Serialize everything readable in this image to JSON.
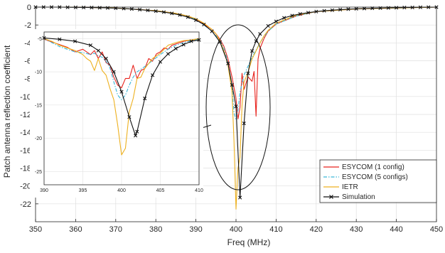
{
  "chart_data": {
    "type": "line",
    "title": "",
    "xlabel": "Freq (MHz)",
    "ylabel": "Patch antenna reflection coefficient",
    "xlim": [
      350,
      450
    ],
    "ylim": [
      -24,
      0
    ],
    "xticks": [
      350,
      360,
      370,
      380,
      390,
      400,
      410,
      420,
      430,
      440,
      450
    ],
    "yticks": [
      0,
      -2,
      -4,
      -6,
      -8,
      -10,
      -12,
      -14,
      -16,
      -18,
      -20,
      -22
    ],
    "grid": true,
    "legend_position": "lower-right",
    "series": [
      {
        "name": "ESYCOM (1 config)",
        "color": "#e8231d",
        "style": "solid",
        "x": [
          350,
          360,
          370,
          380,
          385,
          388,
          390,
          392,
          394,
          395,
          396,
          397,
          398,
          399,
          400,
          400.5,
          401,
          401.5,
          402,
          403,
          404,
          404.5,
          405,
          405.5,
          406,
          407,
          408,
          410,
          415,
          420,
          430,
          440,
          450
        ],
        "y": [
          0,
          0,
          -0.1,
          -0.4,
          -0.7,
          -1.0,
          -1.4,
          -1.9,
          -2.5,
          -3.0,
          -3.6,
          -4.4,
          -5.8,
          -7.8,
          -10.2,
          -12.5,
          -11.2,
          -7.4,
          -9.2,
          -7.8,
          -8.3,
          -7.2,
          -12.2,
          -5.8,
          -4.6,
          -3.5,
          -2.7,
          -1.9,
          -1.0,
          -0.5,
          -0.2,
          -0.1,
          0
        ]
      },
      {
        "name": "ESYCOM (5 configs)",
        "color": "#3ab6d8",
        "style": "dashdot",
        "x": [
          350,
          360,
          370,
          380,
          385,
          388,
          390,
          392,
          394,
          396,
          397,
          398,
          399,
          399.5,
          400,
          400.5,
          401,
          402,
          403,
          404,
          405,
          406,
          407,
          408,
          410,
          415,
          420,
          430,
          440,
          450
        ],
        "y": [
          0,
          0,
          -0.1,
          -0.4,
          -0.7,
          -1.0,
          -1.4,
          -2.0,
          -2.7,
          -3.7,
          -4.6,
          -6.2,
          -8.8,
          -11.8,
          -12.6,
          -11.5,
          -9.5,
          -7.6,
          -6.6,
          -5.6,
          -4.8,
          -4.0,
          -3.3,
          -2.7,
          -1.9,
          -1.0,
          -0.5,
          -0.2,
          -0.1,
          0
        ]
      },
      {
        "name": "IETR",
        "color": "#edb120",
        "style": "solid",
        "x": [
          350,
          360,
          370,
          380,
          385,
          388,
          390,
          392,
          394,
          395,
          396,
          397,
          398,
          399,
          399.5,
          400,
          400.5,
          401,
          401.5,
          402,
          403,
          404,
          405,
          406,
          407,
          408,
          410,
          415,
          420,
          430,
          440,
          450
        ],
        "y": [
          0,
          0,
          -0.1,
          -0.4,
          -0.7,
          -1.0,
          -1.3,
          -1.8,
          -2.5,
          -3.0,
          -3.8,
          -4.9,
          -6.5,
          -9.5,
          -15.0,
          -22.6,
          -18.0,
          -16.8,
          -11.0,
          -8.4,
          -7.3,
          -5.8,
          -4.9,
          -4.0,
          -3.2,
          -2.6,
          -1.8,
          -0.9,
          -0.5,
          -0.2,
          -0.1,
          0
        ]
      },
      {
        "name": "Simulation",
        "color": "#111111",
        "style": "solid",
        "marker": "x",
        "x": [
          350,
          352,
          354,
          356,
          358,
          360,
          362,
          364,
          366,
          368,
          370,
          372,
          374,
          376,
          378,
          380,
          382,
          384,
          386,
          388,
          390,
          392,
          394,
          396,
          398,
          399,
          400,
          401,
          402,
          403,
          404,
          405,
          406,
          408,
          410,
          412,
          414,
          416,
          418,
          420,
          422,
          424,
          426,
          428,
          430,
          432,
          434,
          436,
          438,
          440,
          442,
          444,
          446,
          448,
          450
        ],
        "y": [
          0,
          0,
          0,
          0,
          -0.02,
          -0.03,
          -0.04,
          -0.05,
          -0.07,
          -0.09,
          -0.12,
          -0.16,
          -0.21,
          -0.28,
          -0.36,
          -0.45,
          -0.56,
          -0.7,
          -0.88,
          -1.12,
          -1.45,
          -1.95,
          -2.7,
          -3.9,
          -6.3,
          -8.7,
          -11.1,
          -21.3,
          -13.0,
          -7.4,
          -4.9,
          -3.8,
          -3.0,
          -2.1,
          -1.6,
          -1.2,
          -0.95,
          -0.76,
          -0.62,
          -0.5,
          -0.41,
          -0.34,
          -0.28,
          -0.23,
          -0.19,
          -0.16,
          -0.13,
          -0.11,
          -0.09,
          -0.07,
          -0.05,
          -0.04,
          -0.02,
          -0.01,
          0
        ]
      }
    ],
    "inset": {
      "xlim": [
        390,
        410
      ],
      "ylim": [
        -27,
        -4
      ],
      "xticks": [
        390,
        395,
        400,
        405,
        410
      ],
      "yticks": [
        -5,
        -10,
        -15,
        -20,
        -25
      ],
      "series": [
        {
          "name": "ESYCOM (1 config)",
          "x": [
            390,
            391,
            392,
            393,
            394,
            395,
            396,
            396.5,
            397,
            397.5,
            398,
            398.5,
            399,
            399.5,
            400,
            400.5,
            401,
            401.5,
            402,
            402.5,
            403,
            403.5,
            404,
            404.5,
            405,
            405.5,
            406,
            406.5,
            407,
            407.5,
            408,
            408.5,
            409,
            410
          ],
          "y": [
            -5.1,
            -5.5,
            -5.9,
            -6.3,
            -7.0,
            -6.6,
            -7.4,
            -6.8,
            -8.0,
            -7.0,
            -8.6,
            -9.0,
            -10.8,
            -12.0,
            -12.4,
            -11.0,
            -11.0,
            -9.0,
            -11.0,
            -9.8,
            -9.5,
            -8.0,
            -8.4,
            -7.3,
            -7.0,
            -6.4,
            -6.6,
            -6.0,
            -5.8,
            -5.6,
            -5.4,
            -5.3,
            -5.2,
            -5.1
          ]
        },
        {
          "name": "ESYCOM (5 configs)",
          "x": [
            390,
            391,
            392,
            393,
            394,
            395,
            396,
            396.5,
            397,
            397.5,
            398,
            398.5,
            399,
            399.5,
            400,
            400.5,
            401,
            401.5,
            402,
            403,
            404,
            405,
            406,
            407,
            408,
            409,
            410
          ],
          "y": [
            -5.0,
            -5.6,
            -6.2,
            -6.6,
            -7.0,
            -7.1,
            -7.4,
            -7.2,
            -7.6,
            -7.8,
            -8.4,
            -9.4,
            -11.5,
            -13.5,
            -14.2,
            -13.5,
            -12.0,
            -10.8,
            -10.0,
            -9.2,
            -8.3,
            -7.4,
            -6.6,
            -6.0,
            -5.6,
            -5.3,
            -5.1
          ]
        },
        {
          "name": "IETR",
          "x": [
            390,
            391,
            392,
            393,
            394,
            395,
            395.5,
            396,
            396.5,
            397,
            397.5,
            398,
            398.5,
            399,
            399.5,
            400,
            400.5,
            401,
            401.5,
            402,
            402.5,
            403,
            404,
            405,
            406,
            407,
            408,
            409,
            410
          ],
          "y": [
            -5.0,
            -5.4,
            -6.0,
            -6.4,
            -6.8,
            -7.4,
            -8.0,
            -8.4,
            -9.8,
            -8.0,
            -9.8,
            -10.5,
            -12.5,
            -14.2,
            -18.0,
            -22.5,
            -21.5,
            -16.0,
            -14.0,
            -11.0,
            -10.8,
            -9.5,
            -8.0,
            -7.2,
            -6.0,
            -5.6,
            -5.3,
            -5.2,
            -5.0
          ]
        },
        {
          "name": "Simulation",
          "x": [
            390,
            392,
            394,
            396,
            397,
            398,
            399,
            400,
            401,
            401.8,
            402,
            403,
            404,
            405,
            406,
            407,
            408,
            409,
            410
          ],
          "y": [
            -4.9,
            -5.1,
            -5.4,
            -6.0,
            -6.8,
            -8.0,
            -10.0,
            -13.0,
            -16.8,
            -19.6,
            -19.0,
            -14.0,
            -10.5,
            -8.5,
            -7.3,
            -6.5,
            -5.9,
            -5.4,
            -5.2
          ]
        }
      ]
    }
  }
}
